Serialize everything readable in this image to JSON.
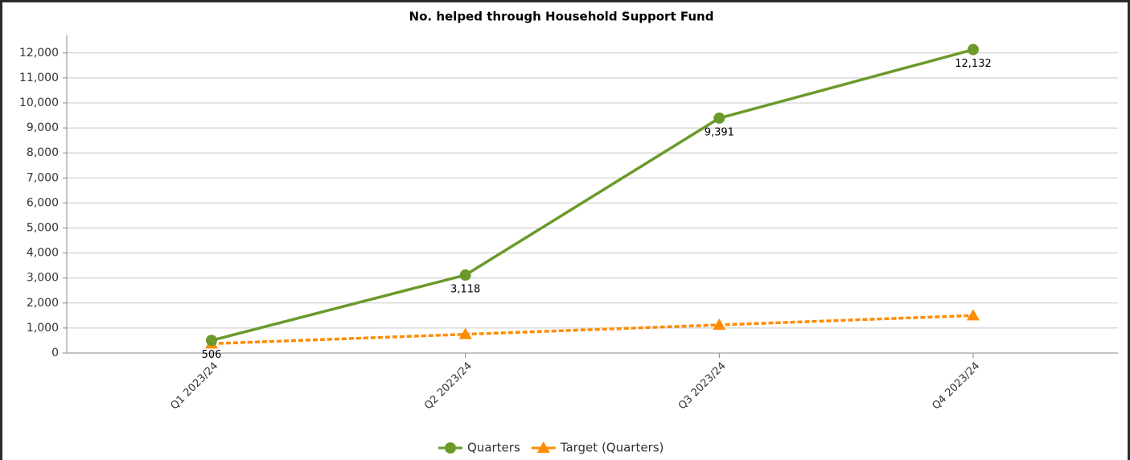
{
  "chart_data": {
    "type": "line",
    "title": "No. helped through Household Support Fund",
    "categories": [
      "Q1 2023/24",
      "Q2 2023/24",
      "Q3 2023/24",
      "Q4 2023/24"
    ],
    "series": [
      {
        "name": "Quarters",
        "color": "#6b9a2a",
        "marker": "circle",
        "dashed": false,
        "values": [
          506,
          3118,
          9391,
          12132
        ],
        "value_labels": [
          "506",
          "3,118",
          "9,391",
          "12,132"
        ]
      },
      {
        "name": "Target (Quarters)",
        "color": "#ff8c00",
        "marker": "triangle",
        "dashed": true,
        "values": [
          375,
          750,
          1125,
          1500
        ]
      }
    ],
    "ylim": [
      0,
      12700
    ],
    "yticks": [
      0,
      {
        "value": 1000,
        "label": "1,000"
      },
      {
        "value": 2000,
        "label": "2,000"
      },
      {
        "value": 3000,
        "label": "3,000"
      },
      {
        "value": 4000,
        "label": "4,000"
      },
      {
        "value": 5000,
        "label": "5,000"
      },
      {
        "value": 6000,
        "label": "6,000"
      },
      {
        "value": 7000,
        "label": "7,000"
      },
      {
        "value": 8000,
        "label": "8,000"
      },
      {
        "value": 9000,
        "label": "9,000"
      },
      {
        "value": 10000,
        "label": "10,000"
      },
      {
        "value": 11000,
        "label": "11,000"
      },
      {
        "value": 12000,
        "label": "12,000"
      }
    ],
    "grid": true,
    "legend": "bottom"
  }
}
